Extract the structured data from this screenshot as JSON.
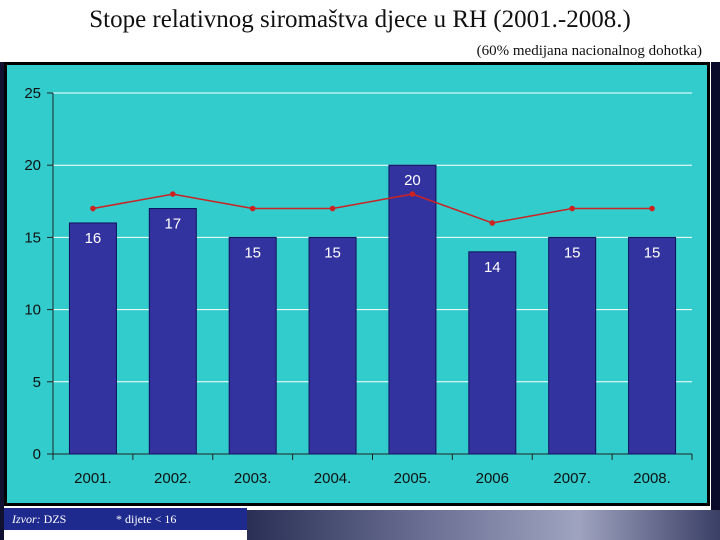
{
  "slide": {
    "title": "Stope relativnog siromaštva djece u RH (2001.-2008.)",
    "subtitle": "(60% medijana nacionalnog dohotka)"
  },
  "footer": {
    "source_label": "Izvor:",
    "source_value": "DZS",
    "note": "* dijete < 16"
  },
  "chart_data": {
    "type": "bar",
    "categories": [
      "2001.",
      "2002.",
      "2003.",
      "2004.",
      "2005.",
      "2006",
      "2007.",
      "2008."
    ],
    "series": [
      {
        "type": "bar",
        "values": [
          16,
          17,
          15,
          15,
          20,
          14,
          15,
          15
        ],
        "color": "#3333a0"
      },
      {
        "type": "line",
        "values": [
          17,
          18,
          17,
          17,
          18,
          16,
          17,
          17
        ],
        "color": "#cc2222"
      }
    ],
    "data_labels": [
      "16",
      "17",
      "15",
      "15",
      "20",
      "14",
      "15",
      "15"
    ],
    "y_ticks": [
      "0",
      "5",
      "10",
      "15",
      "20",
      "25"
    ],
    "ylim": [
      0,
      25
    ],
    "grid": "horizontal",
    "legend": "none",
    "plot_background": "#33cccc"
  }
}
